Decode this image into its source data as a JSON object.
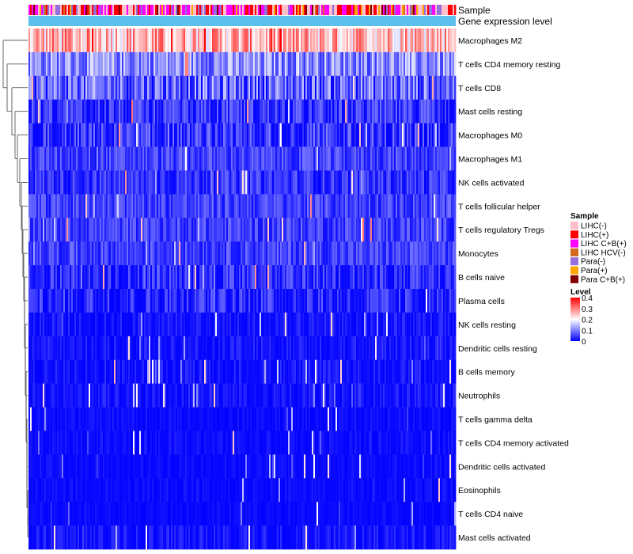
{
  "chart_data": {
    "type": "heatmap",
    "title": "",
    "annotation_rows": [
      "Sample",
      "Gene expression level"
    ],
    "rows": [
      {
        "name": "Macrophages M2",
        "mean": 0.26,
        "spread": 0.09
      },
      {
        "name": "T cells CD4 memory resting",
        "mean": 0.11,
        "spread": 0.07
      },
      {
        "name": "T cells CD8",
        "mean": 0.08,
        "spread": 0.08
      },
      {
        "name": "Mast cells resting",
        "mean": 0.04,
        "spread": 0.05
      },
      {
        "name": "Macrophages M0",
        "mean": 0.03,
        "spread": 0.07
      },
      {
        "name": "Macrophages M1",
        "mean": 0.05,
        "spread": 0.04
      },
      {
        "name": "NK cells activated",
        "mean": 0.04,
        "spread": 0.04
      },
      {
        "name": "T cells follicular helper",
        "mean": 0.05,
        "spread": 0.04
      },
      {
        "name": "T cells regulatory  Tregs",
        "mean": 0.05,
        "spread": 0.04
      },
      {
        "name": "Monocytes",
        "mean": 0.05,
        "spread": 0.04
      },
      {
        "name": "B cells naive",
        "mean": 0.03,
        "spread": 0.05
      },
      {
        "name": "Plasma cells",
        "mean": 0.03,
        "spread": 0.05
      },
      {
        "name": "NK cells resting",
        "mean": 0.01,
        "spread": 0.03
      },
      {
        "name": "Dendritic cells resting",
        "mean": 0.01,
        "spread": 0.03
      },
      {
        "name": "B cells memory",
        "mean": 0.01,
        "spread": 0.03
      },
      {
        "name": "Neutrophils",
        "mean": 0.01,
        "spread": 0.03
      },
      {
        "name": "T cells gamma delta",
        "mean": 0.005,
        "spread": 0.02
      },
      {
        "name": "T cells CD4 memory activated",
        "mean": 0.005,
        "spread": 0.02
      },
      {
        "name": "Dendritic cells activated",
        "mean": 0.003,
        "spread": 0.02
      },
      {
        "name": "Eosinophils",
        "mean": 0.003,
        "spread": 0.02
      },
      {
        "name": "T cells CD4 naive",
        "mean": 0.002,
        "spread": 0.015
      },
      {
        "name": "Mast cells activated",
        "mean": 0.01,
        "spread": 0.03
      }
    ],
    "n_samples": 270,
    "legend": {
      "sample": {
        "title": "Sample",
        "items": [
          {
            "label": "LIHC(-)",
            "color": "#ffc0cb"
          },
          {
            "label": "LIHC(+)",
            "color": "#ff0000"
          },
          {
            "label": "LIHC C+B(+)",
            "color": "#ff00ff"
          },
          {
            "label": "LIHC HCV(-)",
            "color": "#d2691e"
          },
          {
            "label": "Para(-)",
            "color": "#9370db"
          },
          {
            "label": "Para(+)",
            "color": "#ffa500"
          },
          {
            "label": "Para C+B(+)",
            "color": "#800000"
          }
        ]
      },
      "level": {
        "title": "Level",
        "ticks": [
          "0.4",
          "0.3",
          "0.2",
          "0.1",
          "0"
        ],
        "range": [
          0,
          0.4
        ],
        "colors": [
          "#0000ff",
          "#ffffff",
          "#ff0000"
        ]
      }
    },
    "gene_expression_color": "#5bc0eb"
  }
}
